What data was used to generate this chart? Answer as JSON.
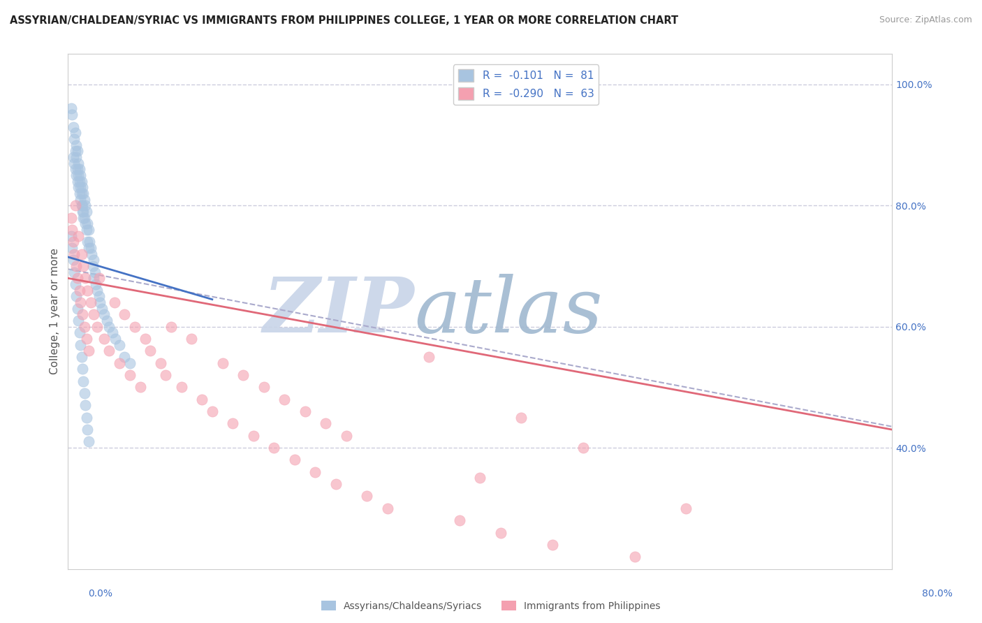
{
  "title": "ASSYRIAN/CHALDEAN/SYRIAC VS IMMIGRANTS FROM PHILIPPINES COLLEGE, 1 YEAR OR MORE CORRELATION CHART",
  "source": "Source: ZipAtlas.com",
  "ylabel": "College, 1 year or more",
  "right_yticks": [
    "40.0%",
    "60.0%",
    "80.0%",
    "100.0%"
  ],
  "right_ytick_vals": [
    0.4,
    0.6,
    0.8,
    1.0
  ],
  "legend_r1": "R =  -0.101",
  "legend_n1": "N =  81",
  "legend_r2": "R =  -0.290",
  "legend_n2": "N =  63",
  "blue_color": "#a8c4e0",
  "pink_color": "#f4a0b0",
  "trend_blue": "#4472c4",
  "trend_pink": "#e06878",
  "trend_gray": "#aaaacc",
  "background": "#ffffff",
  "watermark_zip": "ZIP",
  "watermark_atlas": "atlas",
  "watermark_color_zip": "#c8d4e8",
  "watermark_color_atlas": "#a0b8d0",
  "grid_color": "#ccccdd",
  "xmin": 0.0,
  "xmax": 0.8,
  "ymin": 0.2,
  "ymax": 1.05,
  "blue_trend_x": [
    0.0,
    0.14
  ],
  "blue_trend_y": [
    0.715,
    0.645
  ],
  "pink_trend_x": [
    0.0,
    0.8
  ],
  "pink_trend_y": [
    0.68,
    0.43
  ],
  "gray_trend_x": [
    0.0,
    0.8
  ],
  "gray_trend_y": [
    0.695,
    0.435
  ],
  "blue_scatter_x": [
    0.003,
    0.004,
    0.005,
    0.006,
    0.007,
    0.007,
    0.008,
    0.008,
    0.009,
    0.009,
    0.01,
    0.01,
    0.011,
    0.011,
    0.012,
    0.012,
    0.013,
    0.013,
    0.014,
    0.014,
    0.015,
    0.015,
    0.016,
    0.016,
    0.017,
    0.017,
    0.018,
    0.018,
    0.019,
    0.019,
    0.02,
    0.02,
    0.021,
    0.022,
    0.023,
    0.024,
    0.025,
    0.025,
    0.026,
    0.027,
    0.028,
    0.03,
    0.031,
    0.033,
    0.035,
    0.038,
    0.04,
    0.043,
    0.046,
    0.05,
    0.055,
    0.06,
    0.005,
    0.006,
    0.007,
    0.008,
    0.009,
    0.01,
    0.011,
    0.012,
    0.013,
    0.014,
    0.015,
    0.003,
    0.004,
    0.005,
    0.006,
    0.007,
    0.008,
    0.009,
    0.01,
    0.011,
    0.012,
    0.013,
    0.014,
    0.015,
    0.016,
    0.017,
    0.018,
    0.019,
    0.02
  ],
  "blue_scatter_y": [
    0.96,
    0.95,
    0.93,
    0.91,
    0.92,
    0.89,
    0.9,
    0.88,
    0.89,
    0.86,
    0.87,
    0.85,
    0.86,
    0.84,
    0.85,
    0.83,
    0.84,
    0.82,
    0.83,
    0.8,
    0.82,
    0.79,
    0.81,
    0.78,
    0.8,
    0.77,
    0.79,
    0.76,
    0.77,
    0.74,
    0.76,
    0.73,
    0.74,
    0.73,
    0.72,
    0.7,
    0.71,
    0.68,
    0.69,
    0.67,
    0.66,
    0.65,
    0.64,
    0.63,
    0.62,
    0.61,
    0.6,
    0.59,
    0.58,
    0.57,
    0.55,
    0.54,
    0.88,
    0.87,
    0.86,
    0.85,
    0.84,
    0.83,
    0.82,
    0.81,
    0.8,
    0.79,
    0.78,
    0.75,
    0.73,
    0.71,
    0.69,
    0.67,
    0.65,
    0.63,
    0.61,
    0.59,
    0.57,
    0.55,
    0.53,
    0.51,
    0.49,
    0.47,
    0.45,
    0.43,
    0.41
  ],
  "pink_scatter_x": [
    0.003,
    0.004,
    0.005,
    0.006,
    0.007,
    0.008,
    0.009,
    0.01,
    0.011,
    0.012,
    0.013,
    0.014,
    0.015,
    0.016,
    0.017,
    0.018,
    0.019,
    0.02,
    0.022,
    0.025,
    0.028,
    0.03,
    0.035,
    0.04,
    0.045,
    0.05,
    0.055,
    0.06,
    0.065,
    0.07,
    0.075,
    0.08,
    0.09,
    0.095,
    0.1,
    0.11,
    0.12,
    0.13,
    0.14,
    0.15,
    0.16,
    0.17,
    0.18,
    0.19,
    0.2,
    0.21,
    0.22,
    0.23,
    0.24,
    0.25,
    0.26,
    0.27,
    0.29,
    0.31,
    0.35,
    0.38,
    0.4,
    0.42,
    0.44,
    0.47,
    0.5,
    0.55,
    0.6
  ],
  "pink_scatter_y": [
    0.78,
    0.76,
    0.74,
    0.72,
    0.8,
    0.7,
    0.68,
    0.75,
    0.66,
    0.64,
    0.72,
    0.62,
    0.7,
    0.6,
    0.68,
    0.58,
    0.66,
    0.56,
    0.64,
    0.62,
    0.6,
    0.68,
    0.58,
    0.56,
    0.64,
    0.54,
    0.62,
    0.52,
    0.6,
    0.5,
    0.58,
    0.56,
    0.54,
    0.52,
    0.6,
    0.5,
    0.58,
    0.48,
    0.46,
    0.54,
    0.44,
    0.52,
    0.42,
    0.5,
    0.4,
    0.48,
    0.38,
    0.46,
    0.36,
    0.44,
    0.34,
    0.42,
    0.32,
    0.3,
    0.55,
    0.28,
    0.35,
    0.26,
    0.45,
    0.24,
    0.4,
    0.22,
    0.3
  ]
}
